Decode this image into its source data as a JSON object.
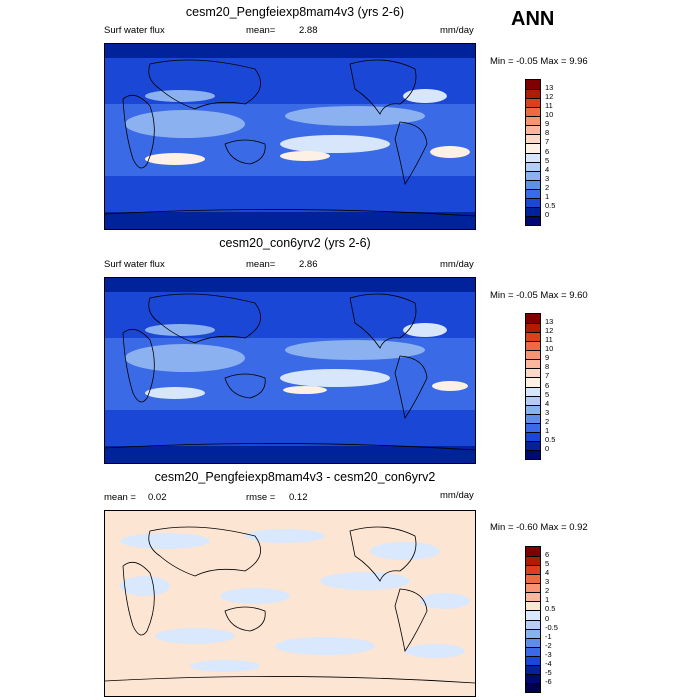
{
  "season": "ANN",
  "panels": [
    {
      "title": "cesm20_Pengfeiexp8mam4v3 (yrs 2-6)",
      "left_label": "Surf water flux",
      "mean_label": "mean=",
      "mean_value": "2.88",
      "units": "mm/day",
      "minmax": "Min = -0.05 Max = 9.96",
      "colorbar_labels": [
        "13",
        "12",
        "11",
        "10",
        "9",
        "8",
        "7",
        "6",
        "5",
        "4",
        "3",
        "2",
        "1",
        "0.5",
        "0"
      ]
    },
    {
      "title": "cesm20_con6yrv2 (yrs 2-6)",
      "left_label": "Surf water flux",
      "mean_label": "mean=",
      "mean_value": "2.86",
      "units": "mm/day",
      "minmax": "Min = -0.05 Max = 9.60",
      "colorbar_labels": [
        "13",
        "12",
        "11",
        "10",
        "9",
        "8",
        "7",
        "6",
        "5",
        "4",
        "3",
        "2",
        "1",
        "0.5",
        "0"
      ]
    },
    {
      "title": "cesm20_Pengfeiexp8mam4v3 - cesm20_con6yrv2",
      "left_label": "mean =",
      "left_value": "0.02",
      "mid_label": "rmse =",
      "mid_value": "0.12",
      "units": "mm/day",
      "minmax": "Min = -0.60 Max = 0.92",
      "colorbar_labels": [
        "6",
        "5",
        "4",
        "3",
        "2",
        "1",
        "0.5",
        "0",
        "-0.5",
        "-1",
        "-2",
        "-3",
        "-4",
        "-5",
        "-6"
      ]
    }
  ],
  "colors": {
    "abs_scale": [
      "#7f0000",
      "#b01c00",
      "#d8411b",
      "#ee6a40",
      "#f79474",
      "#fab79e",
      "#fcd8c6",
      "#fdf1e6",
      "#d8e6fb",
      "#b4cdf7",
      "#8cb1f0",
      "#5f8eea",
      "#3a6ae5",
      "#1b47d6",
      "#00239c",
      "#000a6e"
    ],
    "diff_scale": [
      "#7f0000",
      "#b01c00",
      "#d8411b",
      "#ee6a40",
      "#f79474",
      "#fab79e",
      "#fde5d3",
      "#d9e8fc",
      "#b4cdf7",
      "#8cb1f0",
      "#5f8eea",
      "#3a6ae5",
      "#1b47d6",
      "#00239c",
      "#000a6e",
      "#000050"
    ],
    "map_deep": "#1b47d6",
    "map_mid": "#3a6ae5",
    "map_light": "#8cb1f0",
    "map_pale": "#d8e6fb",
    "map_peach": "#fdf1e6",
    "diff_bg": "#fde5d3",
    "diff_blue": "#d9e8fc"
  },
  "chart_data": [
    {
      "type": "heatmap",
      "title": "cesm20_Pengfeiexp8mam4v3 (yrs 2-6)",
      "variable": "Surf water flux",
      "units": "mm/day",
      "mean": 2.88,
      "min": -0.05,
      "max": 9.96,
      "contour_levels": [
        0,
        0.5,
        1,
        2,
        3,
        4,
        5,
        6,
        7,
        8,
        9,
        10,
        11,
        12,
        13
      ]
    },
    {
      "type": "heatmap",
      "title": "cesm20_con6yrv2 (yrs 2-6)",
      "variable": "Surf water flux",
      "units": "mm/day",
      "mean": 2.86,
      "min": -0.05,
      "max": 9.6,
      "contour_levels": [
        0,
        0.5,
        1,
        2,
        3,
        4,
        5,
        6,
        7,
        8,
        9,
        10,
        11,
        12,
        13
      ]
    },
    {
      "type": "heatmap",
      "title": "cesm20_Pengfeiexp8mam4v3 - cesm20_con6yrv2",
      "units": "mm/day",
      "mean": 0.02,
      "rmse": 0.12,
      "min": -0.6,
      "max": 0.92,
      "contour_levels": [
        -6,
        -5,
        -4,
        -3,
        -2,
        -1,
        -0.5,
        0,
        0.5,
        1,
        2,
        3,
        4,
        5,
        6
      ]
    }
  ]
}
